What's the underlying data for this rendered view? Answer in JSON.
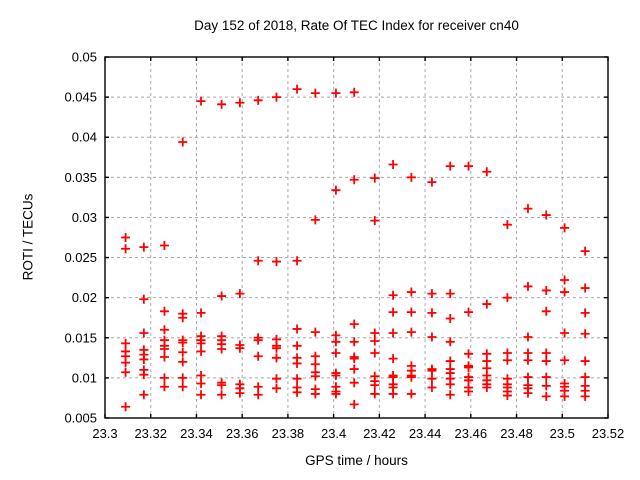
{
  "title": "Day 152 of 2018, Rate Of TEC Index for receiver cn40",
  "chart_data": {
    "type": "scatter",
    "title": "Day 152 of 2018, Rate Of TEC Index for receiver cn40",
    "xlabel": "GPS time / hours",
    "ylabel": "ROTI / TECUs",
    "xlim": [
      23.3,
      23.52
    ],
    "ylim": [
      0.005,
      0.05
    ],
    "xtick_values": [
      23.3,
      23.32,
      23.34,
      23.36,
      23.38,
      23.4,
      23.42,
      23.44,
      23.46,
      23.48,
      23.5,
      23.52
    ],
    "xtick_labels": [
      "23.3",
      "23.32",
      "23.34",
      "23.36",
      "23.38",
      "23.4",
      "23.42",
      "23.44",
      "23.46",
      "23.48",
      "23.5",
      "23.52"
    ],
    "ytick_values": [
      0.005,
      0.01,
      0.015,
      0.02,
      0.025,
      0.03,
      0.035,
      0.04,
      0.045,
      0.05
    ],
    "ytick_labels": [
      "0.005",
      "0.01",
      "0.015",
      "0.02",
      "0.025",
      "0.03",
      "0.035",
      "0.04",
      "0.045",
      "0.05"
    ],
    "grid": "dashed",
    "legend": "none",
    "marker": "plus",
    "marker_color": "#ff0000",
    "grid_color": "#a8a8a8",
    "frame_color": "#000000",
    "background_color": "#ffffff",
    "series": [
      {
        "name": "ROTI",
        "points": [
          [
            23.309,
            0.0275
          ],
          [
            23.309,
            0.0261
          ],
          [
            23.309,
            0.0143
          ],
          [
            23.309,
            0.0133
          ],
          [
            23.309,
            0.0127
          ],
          [
            23.309,
            0.0119
          ],
          [
            23.309,
            0.0107
          ],
          [
            23.309,
            0.0064
          ],
          [
            23.317,
            0.0263
          ],
          [
            23.317,
            0.0198
          ],
          [
            23.317,
            0.0156
          ],
          [
            23.317,
            0.0135
          ],
          [
            23.317,
            0.0129
          ],
          [
            23.317,
            0.0123
          ],
          [
            23.317,
            0.011
          ],
          [
            23.317,
            0.0104
          ],
          [
            23.317,
            0.0079
          ],
          [
            23.326,
            0.0265
          ],
          [
            23.326,
            0.0183
          ],
          [
            23.326,
            0.016
          ],
          [
            23.326,
            0.0147
          ],
          [
            23.326,
            0.014
          ],
          [
            23.326,
            0.0136
          ],
          [
            23.326,
            0.0126
          ],
          [
            23.326,
            0.01
          ],
          [
            23.326,
            0.0089
          ],
          [
            23.334,
            0.0394
          ],
          [
            23.334,
            0.018
          ],
          [
            23.334,
            0.0175
          ],
          [
            23.334,
            0.0147
          ],
          [
            23.334,
            0.0144
          ],
          [
            23.334,
            0.0132
          ],
          [
            23.334,
            0.012
          ],
          [
            23.334,
            0.01
          ],
          [
            23.334,
            0.0089
          ],
          [
            23.342,
            0.0445
          ],
          [
            23.342,
            0.0181
          ],
          [
            23.342,
            0.0152
          ],
          [
            23.342,
            0.0147
          ],
          [
            23.342,
            0.0143
          ],
          [
            23.342,
            0.0133
          ],
          [
            23.342,
            0.0103
          ],
          [
            23.342,
            0.0093
          ],
          [
            23.342,
            0.0079
          ],
          [
            23.351,
            0.0441
          ],
          [
            23.351,
            0.0202
          ],
          [
            23.351,
            0.0152
          ],
          [
            23.351,
            0.0147
          ],
          [
            23.351,
            0.0142
          ],
          [
            23.351,
            0.0136
          ],
          [
            23.351,
            0.0094
          ],
          [
            23.351,
            0.0091
          ],
          [
            23.351,
            0.0079
          ],
          [
            23.359,
            0.0443
          ],
          [
            23.359,
            0.0205
          ],
          [
            23.359,
            0.0141
          ],
          [
            23.359,
            0.0137
          ],
          [
            23.359,
            0.0092
          ],
          [
            23.359,
            0.0087
          ],
          [
            23.359,
            0.0081
          ],
          [
            23.367,
            0.0446
          ],
          [
            23.367,
            0.0246
          ],
          [
            23.367,
            0.015
          ],
          [
            23.367,
            0.0147
          ],
          [
            23.367,
            0.0127
          ],
          [
            23.367,
            0.0089
          ],
          [
            23.367,
            0.0079
          ],
          [
            23.375,
            0.045
          ],
          [
            23.375,
            0.0245
          ],
          [
            23.375,
            0.0148
          ],
          [
            23.375,
            0.014
          ],
          [
            23.375,
            0.0137
          ],
          [
            23.375,
            0.0125
          ],
          [
            23.375,
            0.0099
          ],
          [
            23.375,
            0.0087
          ],
          [
            23.384,
            0.046
          ],
          [
            23.384,
            0.0246
          ],
          [
            23.384,
            0.0161
          ],
          [
            23.384,
            0.014
          ],
          [
            23.384,
            0.0125
          ],
          [
            23.384,
            0.0118
          ],
          [
            23.384,
            0.0099
          ],
          [
            23.384,
            0.0088
          ],
          [
            23.384,
            0.0082
          ],
          [
            23.392,
            0.0455
          ],
          [
            23.392,
            0.0297
          ],
          [
            23.392,
            0.0157
          ],
          [
            23.392,
            0.0127
          ],
          [
            23.392,
            0.0117
          ],
          [
            23.392,
            0.0107
          ],
          [
            23.392,
            0.0102
          ],
          [
            23.392,
            0.0086
          ],
          [
            23.392,
            0.008
          ],
          [
            23.401,
            0.0455
          ],
          [
            23.401,
            0.0334
          ],
          [
            23.401,
            0.0153
          ],
          [
            23.401,
            0.0145
          ],
          [
            23.401,
            0.0131
          ],
          [
            23.401,
            0.0106
          ],
          [
            23.401,
            0.0103
          ],
          [
            23.401,
            0.0089
          ],
          [
            23.401,
            0.0083
          ],
          [
            23.401,
            0.008
          ],
          [
            23.409,
            0.0456
          ],
          [
            23.409,
            0.0347
          ],
          [
            23.409,
            0.0167
          ],
          [
            23.409,
            0.0145
          ],
          [
            23.409,
            0.0126
          ],
          [
            23.409,
            0.0124
          ],
          [
            23.409,
            0.0111
          ],
          [
            23.409,
            0.0094
          ],
          [
            23.409,
            0.0067
          ],
          [
            23.418,
            0.0349
          ],
          [
            23.418,
            0.0296
          ],
          [
            23.418,
            0.0156
          ],
          [
            23.418,
            0.0146
          ],
          [
            23.418,
            0.0131
          ],
          [
            23.418,
            0.0102
          ],
          [
            23.418,
            0.0096
          ],
          [
            23.418,
            0.0091
          ],
          [
            23.418,
            0.008
          ],
          [
            23.426,
            0.0366
          ],
          [
            23.426,
            0.0203
          ],
          [
            23.426,
            0.0182
          ],
          [
            23.426,
            0.0156
          ],
          [
            23.426,
            0.0124
          ],
          [
            23.426,
            0.0103
          ],
          [
            23.426,
            0.0101
          ],
          [
            23.426,
            0.0092
          ],
          [
            23.426,
            0.0088
          ],
          [
            23.426,
            0.008
          ],
          [
            23.434,
            0.035
          ],
          [
            23.434,
            0.0207
          ],
          [
            23.434,
            0.0182
          ],
          [
            23.434,
            0.0157
          ],
          [
            23.434,
            0.0115
          ],
          [
            23.434,
            0.0109
          ],
          [
            23.434,
            0.0103
          ],
          [
            23.434,
            0.0101
          ],
          [
            23.434,
            0.008
          ],
          [
            23.443,
            0.0344
          ],
          [
            23.443,
            0.0205
          ],
          [
            23.443,
            0.0181
          ],
          [
            23.443,
            0.0151
          ],
          [
            23.443,
            0.0111
          ],
          [
            23.443,
            0.0109
          ],
          [
            23.443,
            0.0099
          ],
          [
            23.443,
            0.0088
          ],
          [
            23.451,
            0.0364
          ],
          [
            23.451,
            0.0205
          ],
          [
            23.451,
            0.0174
          ],
          [
            23.451,
            0.0145
          ],
          [
            23.451,
            0.0121
          ],
          [
            23.451,
            0.0111
          ],
          [
            23.451,
            0.0106
          ],
          [
            23.451,
            0.0099
          ],
          [
            23.451,
            0.0092
          ],
          [
            23.451,
            0.0079
          ],
          [
            23.459,
            0.0364
          ],
          [
            23.459,
            0.0182
          ],
          [
            23.459,
            0.013
          ],
          [
            23.459,
            0.0115
          ],
          [
            23.459,
            0.0113
          ],
          [
            23.459,
            0.0101
          ],
          [
            23.459,
            0.0097
          ],
          [
            23.459,
            0.0088
          ],
          [
            23.459,
            0.0083
          ],
          [
            23.467,
            0.0357
          ],
          [
            23.467,
            0.0192
          ],
          [
            23.467,
            0.013
          ],
          [
            23.467,
            0.0121
          ],
          [
            23.467,
            0.0112
          ],
          [
            23.467,
            0.0103
          ],
          [
            23.467,
            0.0097
          ],
          [
            23.467,
            0.0092
          ],
          [
            23.467,
            0.0088
          ],
          [
            23.476,
            0.0291
          ],
          [
            23.476,
            0.02
          ],
          [
            23.476,
            0.0131
          ],
          [
            23.476,
            0.0122
          ],
          [
            23.476,
            0.0099
          ],
          [
            23.476,
            0.0092
          ],
          [
            23.476,
            0.0088
          ],
          [
            23.476,
            0.0083
          ],
          [
            23.476,
            0.0078
          ],
          [
            23.485,
            0.0311
          ],
          [
            23.485,
            0.0214
          ],
          [
            23.485,
            0.0151
          ],
          [
            23.485,
            0.0131
          ],
          [
            23.485,
            0.0122
          ],
          [
            23.485,
            0.0101
          ],
          [
            23.485,
            0.0091
          ],
          [
            23.485,
            0.0087
          ],
          [
            23.485,
            0.0081
          ],
          [
            23.493,
            0.0303
          ],
          [
            23.493,
            0.0209
          ],
          [
            23.493,
            0.0183
          ],
          [
            23.493,
            0.0131
          ],
          [
            23.493,
            0.0121
          ],
          [
            23.493,
            0.0101
          ],
          [
            23.493,
            0.009
          ],
          [
            23.493,
            0.0077
          ],
          [
            23.501,
            0.0287
          ],
          [
            23.501,
            0.0222
          ],
          [
            23.501,
            0.0207
          ],
          [
            23.501,
            0.0156
          ],
          [
            23.501,
            0.0122
          ],
          [
            23.501,
            0.0093
          ],
          [
            23.501,
            0.0089
          ],
          [
            23.501,
            0.0084
          ],
          [
            23.501,
            0.0077
          ],
          [
            23.51,
            0.0258
          ],
          [
            23.51,
            0.0212
          ],
          [
            23.51,
            0.0181
          ],
          [
            23.51,
            0.0155
          ],
          [
            23.51,
            0.0121
          ],
          [
            23.51,
            0.0101
          ],
          [
            23.51,
            0.009
          ],
          [
            23.51,
            0.0084
          ],
          [
            23.51,
            0.0077
          ]
        ]
      }
    ]
  }
}
